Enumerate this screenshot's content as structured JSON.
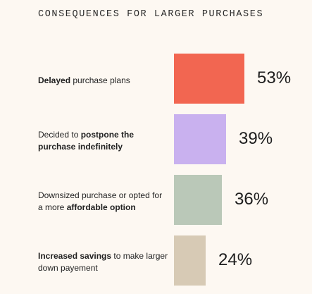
{
  "chart_data": {
    "type": "bar",
    "orientation": "horizontal",
    "title": "CONSEQUENCES FOR LARGER PURCHASES",
    "categories": [
      "Delayed purchase plans",
      "Decided to postpone the purchase indefinitely",
      "Downsized purchase or opted for a more affordable option",
      "Increased savings to make larger down payement"
    ],
    "label_parts": [
      [
        {
          "text": "Delayed",
          "bold": true
        },
        {
          "text": " purchase plans",
          "bold": false
        }
      ],
      [
        {
          "text": "Decided to ",
          "bold": false
        },
        {
          "text": "postpone the purchase indefinitely",
          "bold": true
        }
      ],
      [
        {
          "text": "Downsized purchase or opted for a more ",
          "bold": false
        },
        {
          "text": "affordable option",
          "bold": true
        }
      ],
      [
        {
          "text": "Increased savings",
          "bold": true
        },
        {
          "text": " to make larger down payement",
          "bold": false
        }
      ]
    ],
    "values": [
      53,
      39,
      36,
      24
    ],
    "value_labels": [
      "53%",
      "39%",
      "36%",
      "24%"
    ],
    "unit": "%",
    "colors": [
      "#f26651",
      "#c9b1ef",
      "#bac8b8",
      "#d7cab5"
    ],
    "xlim": [
      0,
      53
    ],
    "grid": false,
    "legend": "none"
  }
}
